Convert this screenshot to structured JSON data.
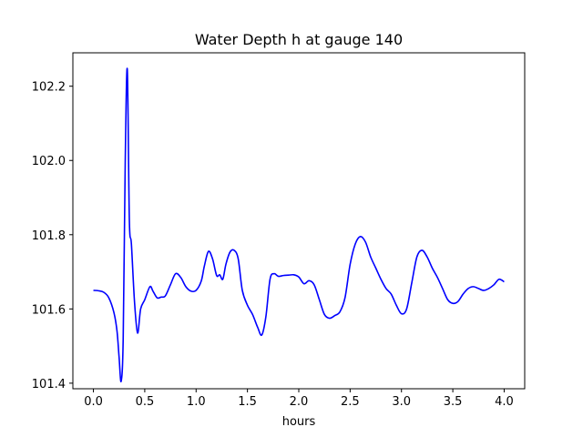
{
  "chart_data": {
    "type": "line",
    "title": "Water Depth h at gauge 140",
    "xlabel": "hours",
    "ylabel": "",
    "xlim": [
      -0.2,
      4.2
    ],
    "ylim": [
      101.385,
      102.29
    ],
    "grid": false,
    "x_ticks": [
      0.0,
      0.5,
      1.0,
      1.5,
      2.0,
      2.5,
      3.0,
      3.5,
      4.0
    ],
    "x_tick_labels": [
      "0.0",
      "0.5",
      "1.0",
      "1.5",
      "2.0",
      "2.5",
      "3.0",
      "3.5",
      "4.0"
    ],
    "y_ticks": [
      101.4,
      101.6,
      101.8,
      102.0,
      102.2
    ],
    "y_tick_labels": [
      "101.4",
      "101.6",
      "101.8",
      "102.0",
      "102.2"
    ],
    "series": [
      {
        "color": "#0000ff",
        "x": [
          0.0,
          0.05,
          0.1,
          0.15,
          0.2,
          0.23,
          0.25,
          0.27,
          0.29,
          0.31,
          0.33,
          0.35,
          0.37,
          0.4,
          0.43,
          0.46,
          0.5,
          0.55,
          0.58,
          0.62,
          0.66,
          0.7,
          0.75,
          0.8,
          0.85,
          0.9,
          0.95,
          1.0,
          1.05,
          1.08,
          1.12,
          1.16,
          1.2,
          1.23,
          1.26,
          1.29,
          1.33,
          1.37,
          1.41,
          1.45,
          1.5,
          1.55,
          1.6,
          1.64,
          1.68,
          1.72,
          1.76,
          1.8,
          1.85,
          1.9,
          1.95,
          2.0,
          2.05,
          2.1,
          2.15,
          2.2,
          2.25,
          2.3,
          2.35,
          2.4,
          2.45,
          2.5,
          2.55,
          2.6,
          2.65,
          2.7,
          2.75,
          2.8,
          2.85,
          2.9,
          2.95,
          3.0,
          3.05,
          3.1,
          3.15,
          3.2,
          3.25,
          3.3,
          3.35,
          3.4,
          3.45,
          3.5,
          3.55,
          3.6,
          3.65,
          3.7,
          3.75,
          3.8,
          3.85,
          3.9,
          3.95,
          4.0
        ],
        "y": [
          101.65,
          101.649,
          101.645,
          101.63,
          101.59,
          101.54,
          101.47,
          101.405,
          101.52,
          102.0,
          102.245,
          101.84,
          101.775,
          101.62,
          101.535,
          101.6,
          101.625,
          101.66,
          101.648,
          101.63,
          101.632,
          101.635,
          101.665,
          101.695,
          101.685,
          101.66,
          101.648,
          101.65,
          101.675,
          101.715,
          101.755,
          101.735,
          101.69,
          101.692,
          101.68,
          101.72,
          101.753,
          101.758,
          101.735,
          101.65,
          101.61,
          101.585,
          101.55,
          101.53,
          101.58,
          101.68,
          101.695,
          101.688,
          101.69,
          101.691,
          101.692,
          101.686,
          101.668,
          101.676,
          101.665,
          101.625,
          101.585,
          101.575,
          101.582,
          101.592,
          101.63,
          101.72,
          101.775,
          101.795,
          101.78,
          101.74,
          101.71,
          101.68,
          101.655,
          101.64,
          101.61,
          101.587,
          101.6,
          101.67,
          101.74,
          101.758,
          101.74,
          101.71,
          101.685,
          101.655,
          101.625,
          101.615,
          101.62,
          101.64,
          101.655,
          101.66,
          101.655,
          101.65,
          101.655,
          101.665,
          101.68,
          101.673
        ]
      }
    ]
  }
}
